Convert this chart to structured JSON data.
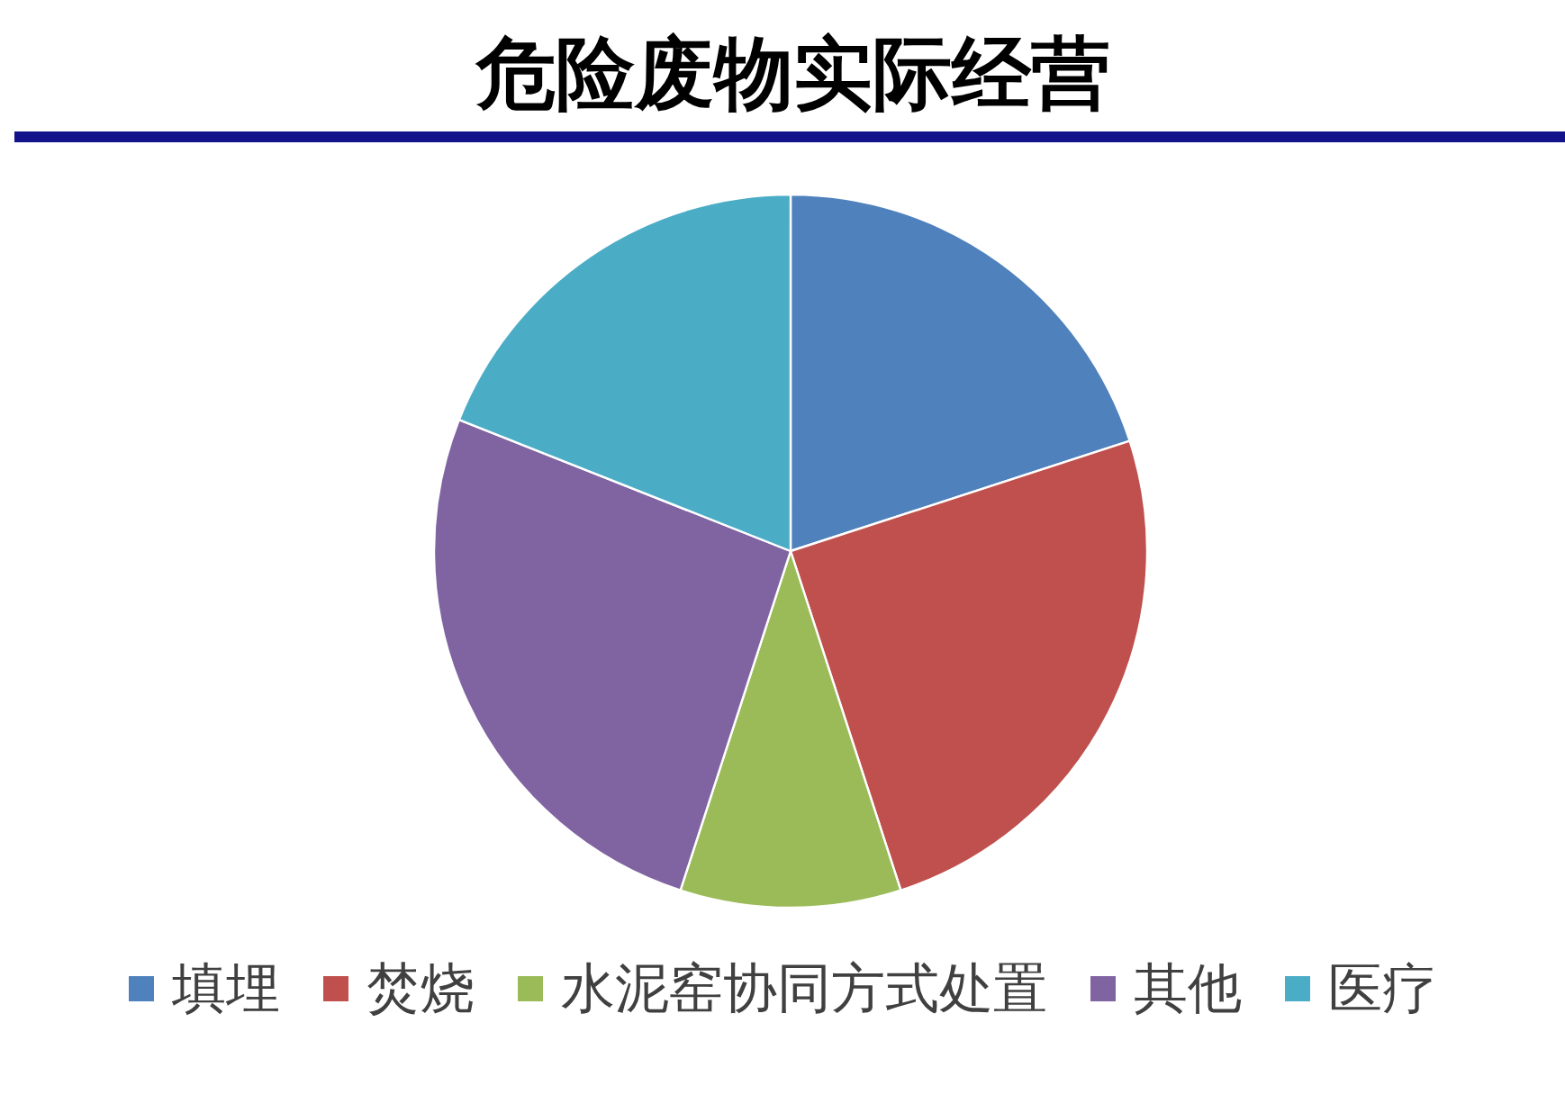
{
  "chart_data": {
    "type": "pie",
    "title": "危险废物实际经营",
    "categories": [
      "填埋",
      "焚烧",
      "水泥窑协同方式处置",
      "其他",
      "医疗"
    ],
    "values": [
      20,
      25,
      10,
      26,
      19
    ],
    "colors": [
      "#4f81bd",
      "#c0504d",
      "#9bbb59",
      "#8064a2",
      "#4bacc6"
    ],
    "legend": "bottom"
  }
}
